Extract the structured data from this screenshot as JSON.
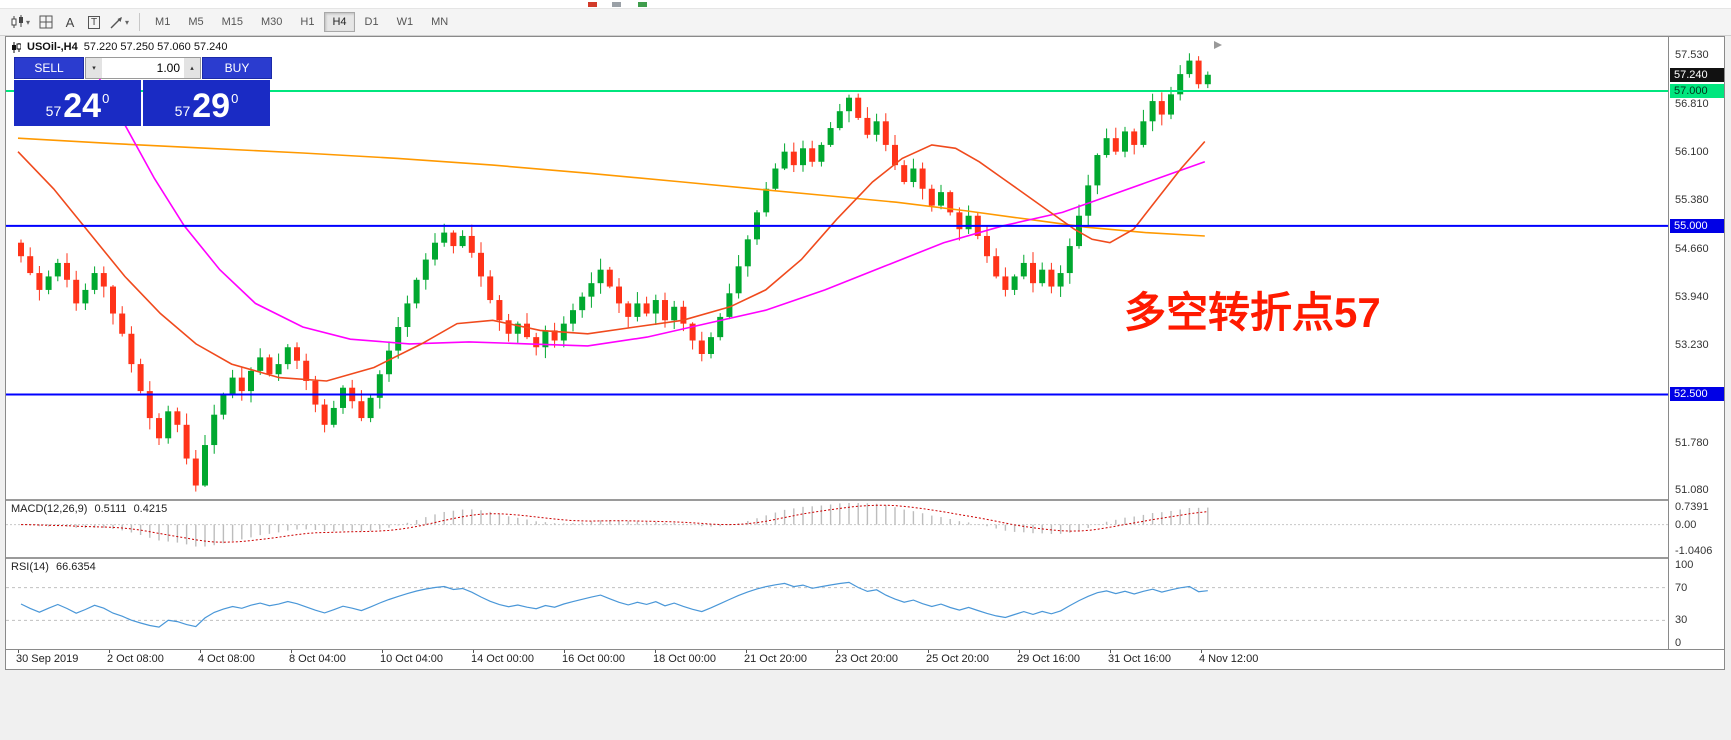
{
  "toolbar": {
    "timeframes": [
      {
        "label": "M1",
        "active": false
      },
      {
        "label": "M5",
        "active": false
      },
      {
        "label": "M15",
        "active": false
      },
      {
        "label": "M30",
        "active": false
      },
      {
        "label": "H1",
        "active": false
      },
      {
        "label": "H4",
        "active": true
      },
      {
        "label": "D1",
        "active": false
      },
      {
        "label": "W1",
        "active": false
      },
      {
        "label": "MN",
        "active": false
      }
    ],
    "text_tool_label": "A",
    "textbox_tool_label": "T"
  },
  "chart": {
    "symbol_period": "USOil-,H4",
    "ohlc_text": "57.220 57.250 57.060 57.240",
    "annotation": "多空转折点57",
    "trade_panel": {
      "sell_label": "SELL",
      "buy_label": "BUY",
      "volume": "1.00",
      "sell_price": {
        "prefix": "57",
        "big": "24",
        "sup": "0"
      },
      "buy_price": {
        "prefix": "57",
        "big": "29",
        "sup": "0"
      }
    }
  },
  "macd": {
    "title": "MACD(12,26,9)",
    "value_main": "0.5111",
    "value_signal": "0.4215",
    "scale": [
      "0.7391",
      "0.00",
      "-1.0406"
    ]
  },
  "rsi": {
    "title": "RSI(14)",
    "value": "66.6354",
    "scale": [
      "100",
      "70",
      "30",
      "0"
    ]
  },
  "chart_data": {
    "type": "candlestick",
    "symbol": "USOil-",
    "timeframe": "H4",
    "ohlc_current": {
      "open": 57.22,
      "high": 57.25,
      "low": 57.06,
      "close": 57.24
    },
    "y_axis": {
      "min": 50.95,
      "max": 57.8,
      "ticks": [
        57.53,
        56.81,
        56.1,
        55.38,
        54.66,
        53.94,
        53.23,
        51.78,
        51.08
      ]
    },
    "first_open": 54.75,
    "closes": [
      54.55,
      54.3,
      54.05,
      54.25,
      54.45,
      54.2,
      53.85,
      54.05,
      54.3,
      54.1,
      53.7,
      53.4,
      52.95,
      52.55,
      52.15,
      51.85,
      52.25,
      52.05,
      51.55,
      51.15,
      51.75,
      52.2,
      52.5,
      52.75,
      52.55,
      52.85,
      53.05,
      52.8,
      52.95,
      53.2,
      53.0,
      52.7,
      52.35,
      52.05,
      52.3,
      52.6,
      52.4,
      52.15,
      52.45,
      52.8,
      53.15,
      53.5,
      53.85,
      54.2,
      54.5,
      54.75,
      54.9,
      54.7,
      54.85,
      54.6,
      54.25,
      53.9,
      53.6,
      53.4,
      53.55,
      53.35,
      53.2,
      53.45,
      53.3,
      53.55,
      53.75,
      53.95,
      54.15,
      54.35,
      54.1,
      53.85,
      53.65,
      53.85,
      53.7,
      53.9,
      53.6,
      53.8,
      53.55,
      53.3,
      53.1,
      53.35,
      53.65,
      54.0,
      54.4,
      54.8,
      55.2,
      55.55,
      55.85,
      56.1,
      55.9,
      56.15,
      55.95,
      56.2,
      56.45,
      56.7,
      56.9,
      56.6,
      56.35,
      56.55,
      56.2,
      55.9,
      55.65,
      55.85,
      55.55,
      55.3,
      55.5,
      55.2,
      54.95,
      55.15,
      54.85,
      54.55,
      54.25,
      54.05,
      54.25,
      54.45,
      54.15,
      54.35,
      54.1,
      54.3,
      54.7,
      55.15,
      55.6,
      56.05,
      56.3,
      56.1,
      56.4,
      56.2,
      56.55,
      56.85,
      56.65,
      56.95,
      57.25,
      57.45,
      57.1,
      57.24
    ],
    "up_color": "#00a82f",
    "down_color": "#ff3319",
    "hlines": [
      {
        "price": 57.0,
        "color": "#00e67e",
        "label": "57.000",
        "name": "resistance-line"
      },
      {
        "price": 55.0,
        "color": "#0000ff",
        "label": "55.000",
        "name": "support-line-55"
      },
      {
        "price": 52.5,
        "color": "#0000ff",
        "label": "52.500",
        "name": "support-line-525"
      }
    ],
    "price_tags": [
      {
        "label": "57.240",
        "price": 57.24,
        "bg": "#111111",
        "fg": "#ffffff",
        "name": "current-price-tag"
      },
      {
        "label": "57.000",
        "price": 57.0,
        "bg": "#00e67e",
        "fg": "#00331a",
        "name": "resistance-price-tag"
      },
      {
        "label": "55.000",
        "price": 55.0,
        "bg": "#0000e6",
        "fg": "#ffffff",
        "name": "support55-price-tag"
      },
      {
        "label": "52.500",
        "price": 52.5,
        "bg": "#0000e6",
        "fg": "#ffffff",
        "name": "support525-price-tag"
      }
    ],
    "moving_averages": [
      {
        "name": "slow-ma",
        "color": "#ff9900",
        "points": [
          [
            0,
            56.3
          ],
          [
            0.08,
            56.22
          ],
          [
            0.16,
            56.15
          ],
          [
            0.24,
            56.08
          ],
          [
            0.32,
            56.0
          ],
          [
            0.4,
            55.9
          ],
          [
            0.48,
            55.78
          ],
          [
            0.56,
            55.65
          ],
          [
            0.62,
            55.55
          ],
          [
            0.68,
            55.45
          ],
          [
            0.74,
            55.35
          ],
          [
            0.8,
            55.22
          ],
          [
            0.85,
            55.1
          ],
          [
            0.9,
            54.98
          ],
          [
            0.95,
            54.9
          ],
          [
            1.0,
            54.85
          ]
        ]
      },
      {
        "name": "medium-ma",
        "color": "#ff00ff",
        "points": [
          [
            0.065,
            57.3
          ],
          [
            0.09,
            56.5
          ],
          [
            0.115,
            55.7
          ],
          [
            0.14,
            55.0
          ],
          [
            0.17,
            54.35
          ],
          [
            0.2,
            53.85
          ],
          [
            0.24,
            53.5
          ],
          [
            0.28,
            53.32
          ],
          [
            0.33,
            53.25
          ],
          [
            0.38,
            53.28
          ],
          [
            0.43,
            53.25
          ],
          [
            0.48,
            53.22
          ],
          [
            0.53,
            53.35
          ],
          [
            0.58,
            53.55
          ],
          [
            0.63,
            53.75
          ],
          [
            0.68,
            54.05
          ],
          [
            0.73,
            54.4
          ],
          [
            0.78,
            54.75
          ],
          [
            0.83,
            55.0
          ],
          [
            0.88,
            55.2
          ],
          [
            0.92,
            55.45
          ],
          [
            0.96,
            55.7
          ],
          [
            1.0,
            55.95
          ]
        ]
      },
      {
        "name": "fast-ma",
        "color": "#f04a1d",
        "points": [
          [
            0,
            56.1
          ],
          [
            0.03,
            55.55
          ],
          [
            0.06,
            54.9
          ],
          [
            0.09,
            54.25
          ],
          [
            0.12,
            53.7
          ],
          [
            0.15,
            53.25
          ],
          [
            0.18,
            52.95
          ],
          [
            0.22,
            52.75
          ],
          [
            0.26,
            52.7
          ],
          [
            0.3,
            52.9
          ],
          [
            0.34,
            53.25
          ],
          [
            0.37,
            53.55
          ],
          [
            0.4,
            53.6
          ],
          [
            0.44,
            53.45
          ],
          [
            0.48,
            53.4
          ],
          [
            0.52,
            53.5
          ],
          [
            0.56,
            53.6
          ],
          [
            0.6,
            53.8
          ],
          [
            0.63,
            54.05
          ],
          [
            0.66,
            54.5
          ],
          [
            0.69,
            55.1
          ],
          [
            0.72,
            55.65
          ],
          [
            0.745,
            56.0
          ],
          [
            0.77,
            56.2
          ],
          [
            0.79,
            56.15
          ],
          [
            0.81,
            55.95
          ],
          [
            0.83,
            55.7
          ],
          [
            0.85,
            55.45
          ],
          [
            0.87,
            55.2
          ],
          [
            0.89,
            54.95
          ],
          [
            0.905,
            54.8
          ],
          [
            0.92,
            54.75
          ],
          [
            0.94,
            54.95
          ],
          [
            0.96,
            55.4
          ],
          [
            0.98,
            55.85
          ],
          [
            1.0,
            56.25
          ]
        ]
      }
    ],
    "macd": {
      "params": "12,26,9",
      "value": 0.5111,
      "signal": 0.4215,
      "range": [
        -1.0406,
        0.7391
      ],
      "hist_color": "#bdbdbd",
      "signal_color": "#cc0000"
    },
    "rsi": {
      "period": 14,
      "value": 66.6354,
      "range": [
        0,
        100
      ],
      "levels": [
        30,
        70
      ],
      "line_color": "#4a97d8"
    },
    "x_labels": [
      "30 Sep 2019",
      "2 Oct 08:00",
      "4 Oct 08:00",
      "8 Oct 04:00",
      "10 Oct 04:00",
      "14 Oct 00:00",
      "16 Oct 00:00",
      "18 Oct 00:00",
      "21 Oct 20:00",
      "23 Oct 20:00",
      "25 Oct 20:00",
      "29 Oct 16:00",
      "31 Oct 16:00",
      "4 Nov 12:00"
    ]
  }
}
